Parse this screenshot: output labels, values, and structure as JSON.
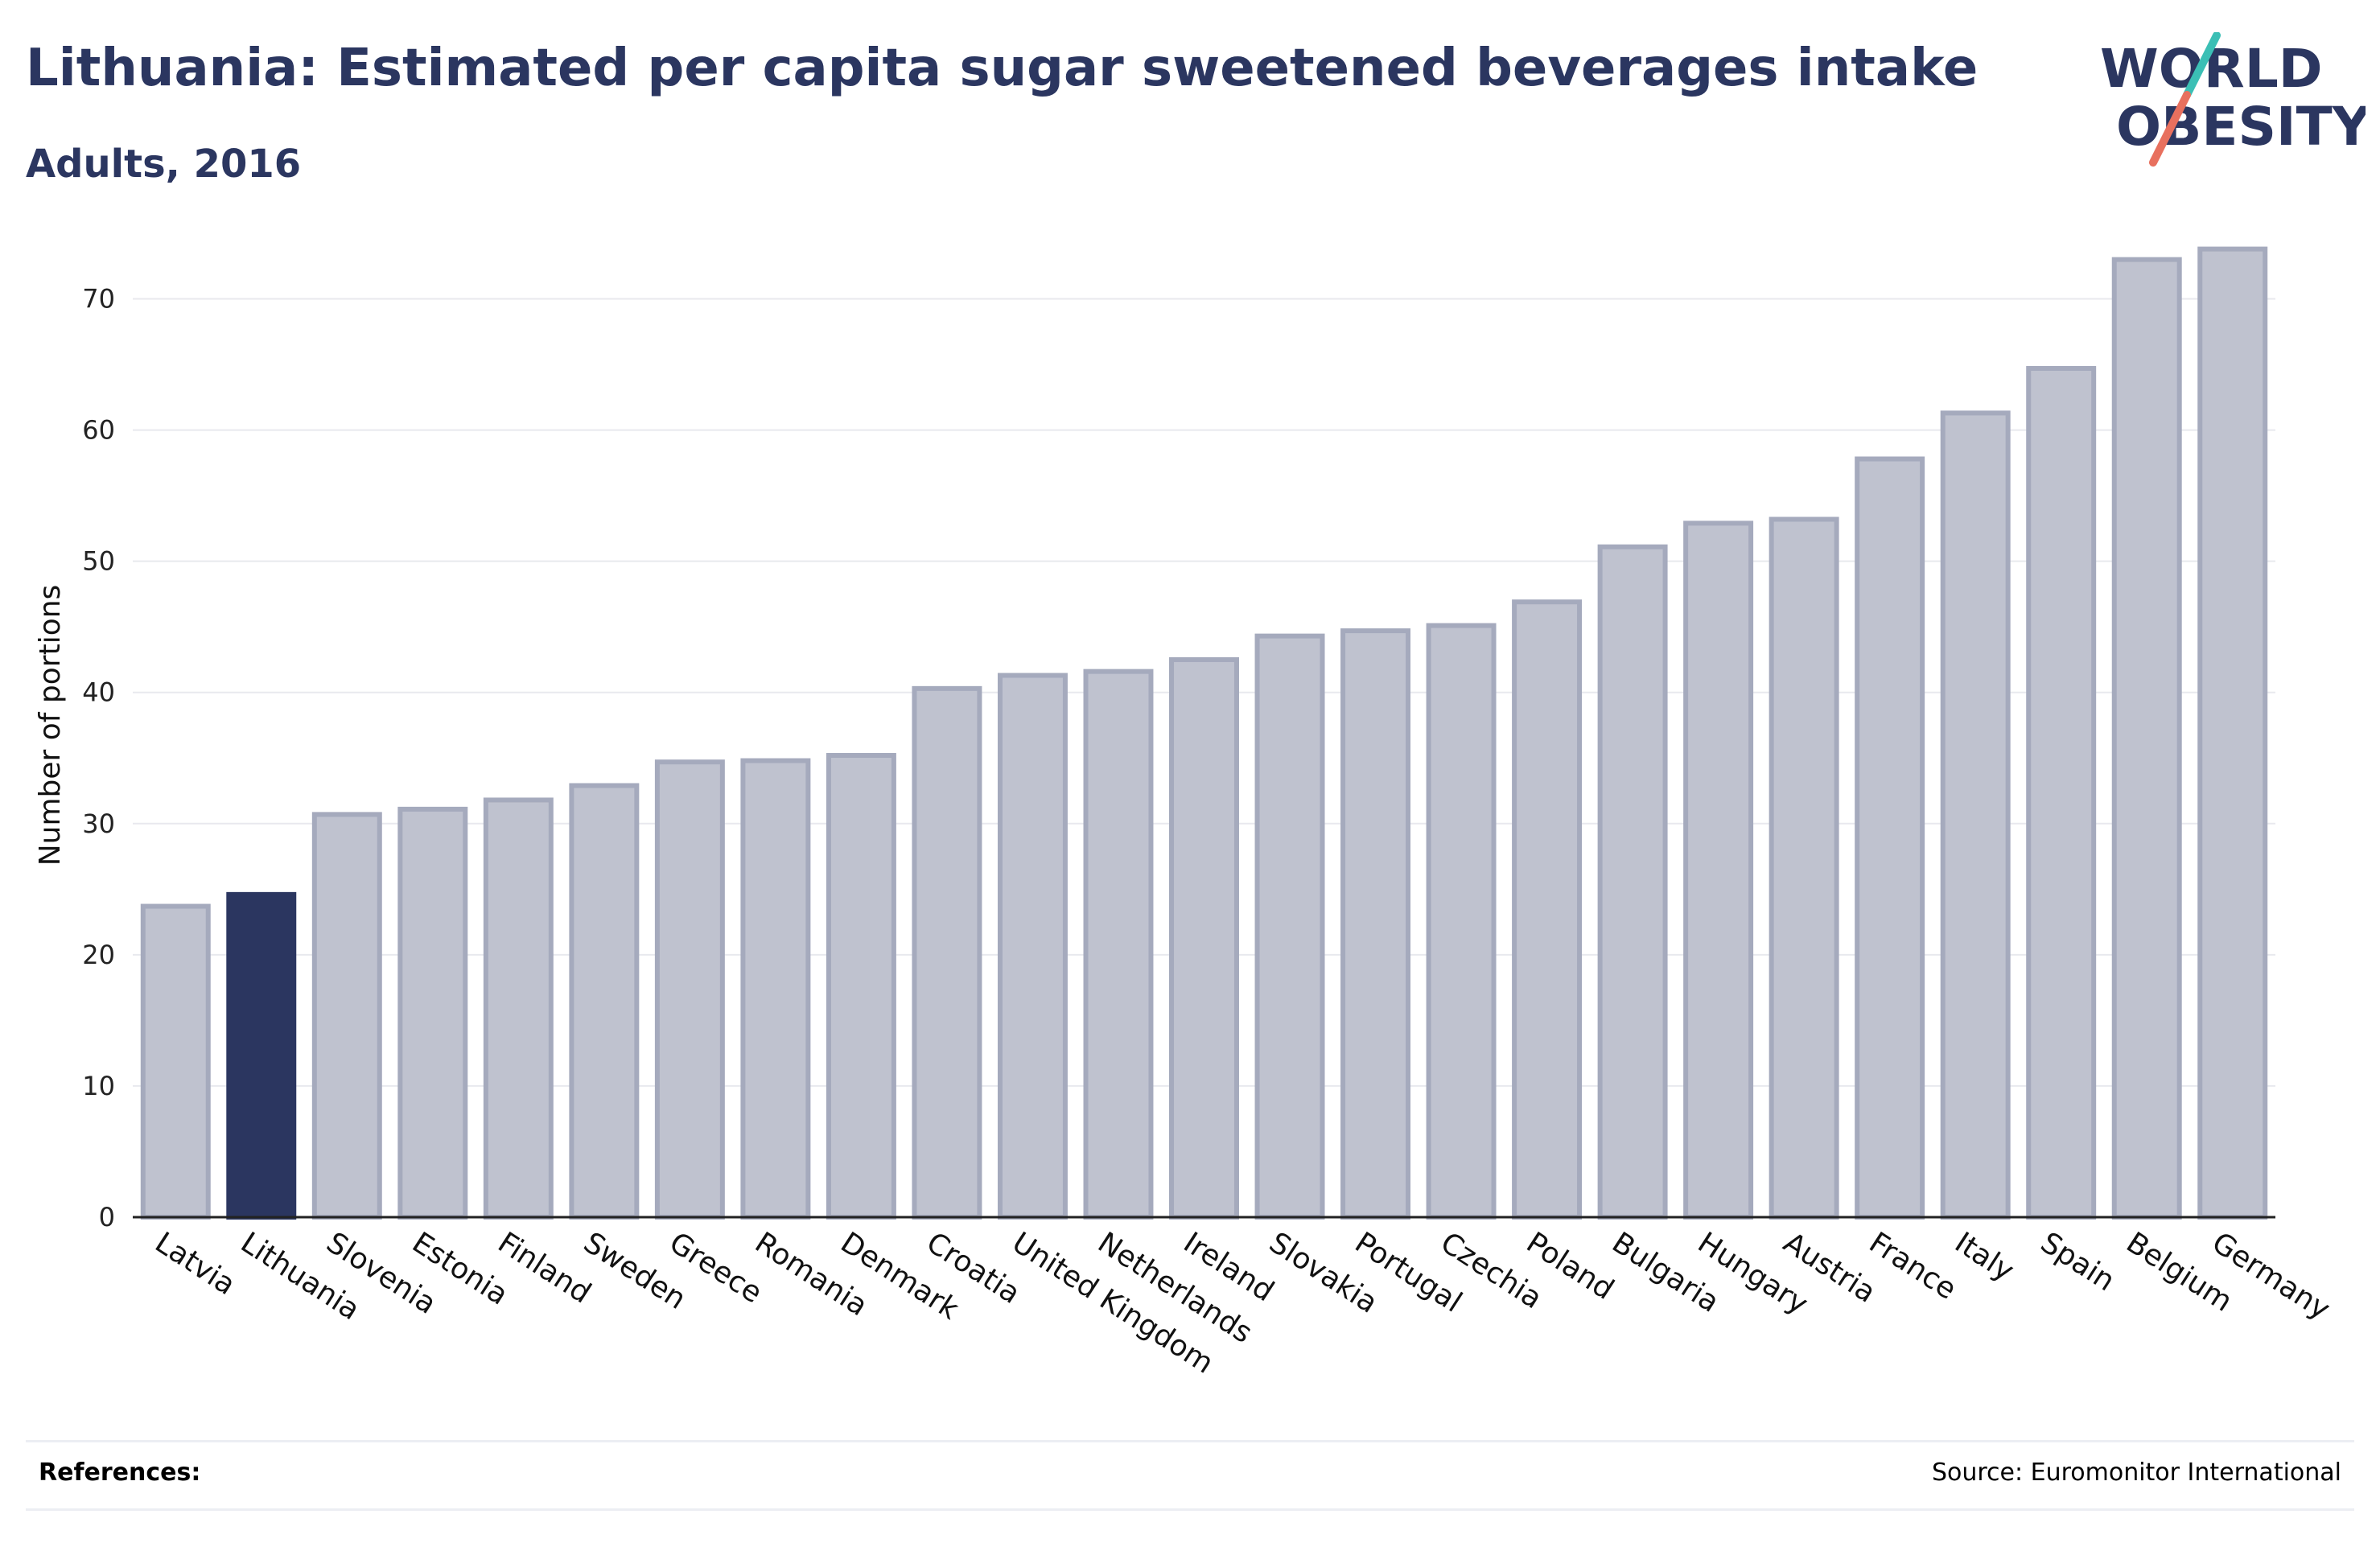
{
  "header": {
    "title": "Lithuania: Estimated per capita sugar sweetened beverages intake",
    "subtitle": "Adults, 2016"
  },
  "logo": {
    "line1": "WORLD",
    "line2": "OBESITY",
    "teal": "#3bbfb5",
    "coral": "#e8705e",
    "navy": "#2b3660"
  },
  "colors": {
    "highlight": "#2b3660",
    "bar_fill": "#bfc2cf",
    "bar_stroke": "#a5aabd",
    "grid": "#e8e9ee",
    "axis": "#222222"
  },
  "chart_data": {
    "type": "bar",
    "ylabel": "Number of portions",
    "xlabel": "",
    "ylim": [
      0,
      75
    ],
    "yticks": [
      0,
      10,
      20,
      30,
      40,
      50,
      60,
      70
    ],
    "grid": true,
    "highlight": "Lithuania",
    "categories": [
      "Latvia",
      "Lithuania",
      "Slovenia",
      "Estonia",
      "Finland",
      "Sweden",
      "Greece",
      "Romania",
      "Denmark",
      "Croatia",
      "United Kingdom",
      "Netherlands",
      "Ireland",
      "Slovakia",
      "Portugal",
      "Czechia",
      "Poland",
      "Bulgaria",
      "Hungary",
      "Austria",
      "France",
      "Italy",
      "Spain",
      "Belgium",
      "Germany"
    ],
    "values": [
      23.7,
      24.6,
      30.7,
      31.1,
      31.8,
      32.9,
      34.7,
      34.8,
      35.2,
      40.3,
      41.3,
      41.6,
      42.5,
      44.3,
      44.7,
      45.1,
      46.9,
      51.1,
      52.9,
      53.2,
      57.8,
      61.3,
      64.7,
      73.0,
      73.8
    ]
  },
  "footer": {
    "references_label": "References:",
    "source": "Source: Euromonitor International"
  }
}
